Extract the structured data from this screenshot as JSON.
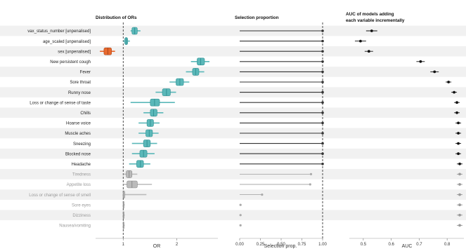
{
  "chart_data": [
    {
      "type": "boxplot",
      "title": "Distribution of ORs",
      "xlabel": "OR",
      "xscale": "log",
      "xticks": [
        "1",
        "2"
      ],
      "reference_line": 1,
      "colors": {
        "unpenalised_sex": "#e8692e",
        "selected": "#5bb8b9",
        "not_selected": "#bbbbbb"
      },
      "rows": [
        {
          "label": "vax_status_number [unpenalised]",
          "median": 1.16,
          "q1": 1.12,
          "q3": 1.2,
          "lo": 1.1,
          "hi": 1.25,
          "selected": true
        },
        {
          "label": "age_scaled [unpenalised]",
          "median": 1.04,
          "q1": 1.02,
          "q3": 1.06,
          "lo": 1.0,
          "hi": 1.09,
          "selected": true
        },
        {
          "label": "sex [unpenalised]",
          "median": 0.82,
          "q1": 0.78,
          "q3": 0.86,
          "lo": 0.74,
          "hi": 0.9,
          "selected": true,
          "highlight": true
        },
        {
          "label": "New persistent cough",
          "median": 2.72,
          "q1": 2.6,
          "q3": 2.86,
          "lo": 2.4,
          "hi": 3.05,
          "selected": true
        },
        {
          "label": "Fever",
          "median": 2.55,
          "q1": 2.45,
          "q3": 2.66,
          "lo": 2.25,
          "hi": 2.85,
          "selected": true
        },
        {
          "label": "Sore throat",
          "median": 2.08,
          "q1": 1.98,
          "q3": 2.18,
          "lo": 1.82,
          "hi": 2.35,
          "selected": true
        },
        {
          "label": "Runny nose",
          "median": 1.75,
          "q1": 1.66,
          "q3": 1.84,
          "lo": 1.52,
          "hi": 1.98,
          "selected": true
        },
        {
          "label": "Loss or change of sense of taste",
          "median": 1.5,
          "q1": 1.42,
          "q3": 1.6,
          "lo": 1.1,
          "hi": 1.95,
          "selected": true
        },
        {
          "label": "Chills",
          "median": 1.48,
          "q1": 1.42,
          "q3": 1.55,
          "lo": 1.3,
          "hi": 1.68,
          "selected": true
        },
        {
          "label": "Hoarse voice",
          "median": 1.42,
          "q1": 1.36,
          "q3": 1.48,
          "lo": 1.22,
          "hi": 1.6,
          "selected": true
        },
        {
          "label": "Muscle aches",
          "median": 1.4,
          "q1": 1.34,
          "q3": 1.46,
          "lo": 1.22,
          "hi": 1.58,
          "selected": true
        },
        {
          "label": "Sneezing",
          "median": 1.36,
          "q1": 1.3,
          "q3": 1.42,
          "lo": 1.12,
          "hi": 1.55,
          "selected": true
        },
        {
          "label": "Blocked nose",
          "median": 1.3,
          "q1": 1.24,
          "q3": 1.36,
          "lo": 1.12,
          "hi": 1.5,
          "selected": true
        },
        {
          "label": "Headache",
          "median": 1.25,
          "q1": 1.19,
          "q3": 1.3,
          "lo": 1.08,
          "hi": 1.42,
          "selected": true
        },
        {
          "label": "Tiredness",
          "median": 1.08,
          "q1": 1.04,
          "q3": 1.12,
          "lo": 1.0,
          "hi": 1.2,
          "selected": true
        },
        {
          "label": "Appetite loss",
          "median": 1.12,
          "q1": 1.05,
          "q3": 1.2,
          "lo": 1.0,
          "hi": 1.45,
          "selected": true
        },
        {
          "label": "Loss or change of sense of smell",
          "median": 1.0,
          "q1": 1.0,
          "q3": 1.02,
          "lo": 1.0,
          "hi": 1.35,
          "selected": false
        },
        {
          "label": "Sore eyes",
          "median": 1.0,
          "q1": 1.0,
          "q3": 1.0,
          "lo": 1.0,
          "hi": 1.02,
          "selected": false
        },
        {
          "label": "Dizziness",
          "median": 1.0,
          "q1": 1.0,
          "q3": 1.0,
          "lo": 1.0,
          "hi": 1.02,
          "selected": false
        },
        {
          "label": "Nausea/vomiting",
          "median": 1.0,
          "q1": 1.0,
          "q3": 1.0,
          "lo": 1.0,
          "hi": 1.02,
          "selected": false
        }
      ]
    },
    {
      "type": "lollipop",
      "title": "Selection proportion",
      "xlabel": "Selection prop.",
      "xticks": [
        "0.00",
        "0.25",
        "0.50",
        "0.75",
        "1.00"
      ],
      "xlim": [
        0,
        1
      ],
      "threshold": 1,
      "values": [
        1,
        1,
        1,
        1,
        1,
        1,
        1,
        1,
        1,
        1,
        1,
        1,
        1,
        1,
        0.86,
        0.85,
        0.27,
        0.01,
        0.01,
        0.01
      ]
    },
    {
      "type": "pointrange",
      "title": "AUC of models adding each variable incrementally",
      "title_lines": [
        "AUC of models adding",
        "each variable incrementally"
      ],
      "xlabel": "AUC",
      "xticks": [
        "0.5",
        "0.6",
        "0.7",
        "0.8"
      ],
      "xlim": [
        0.45,
        0.86
      ],
      "values": [
        {
          "auc": 0.53,
          "lo": 0.51,
          "hi": 0.55
        },
        {
          "auc": 0.49,
          "lo": 0.47,
          "hi": 0.51
        },
        {
          "auc": 0.52,
          "lo": 0.505,
          "hi": 0.535
        },
        {
          "auc": 0.705,
          "lo": 0.69,
          "hi": 0.72
        },
        {
          "auc": 0.755,
          "lo": 0.74,
          "hi": 0.77
        },
        {
          "auc": 0.805,
          "lo": 0.795,
          "hi": 0.815
        },
        {
          "auc": 0.825,
          "lo": 0.815,
          "hi": 0.835
        },
        {
          "auc": 0.835,
          "lo": 0.825,
          "hi": 0.845
        },
        {
          "auc": 0.835,
          "lo": 0.825,
          "hi": 0.845
        },
        {
          "auc": 0.84,
          "lo": 0.83,
          "hi": 0.85
        },
        {
          "auc": 0.84,
          "lo": 0.83,
          "hi": 0.85
        },
        {
          "auc": 0.84,
          "lo": 0.83,
          "hi": 0.85
        },
        {
          "auc": 0.84,
          "lo": 0.83,
          "hi": 0.85
        },
        {
          "auc": 0.845,
          "lo": 0.835,
          "hi": 0.855
        },
        {
          "auc": 0.845,
          "lo": 0.835,
          "hi": 0.855
        },
        {
          "auc": 0.845,
          "lo": 0.835,
          "hi": 0.855
        },
        {
          "auc": 0.845,
          "lo": 0.835,
          "hi": 0.855
        },
        {
          "auc": 0.845,
          "lo": 0.835,
          "hi": 0.855
        },
        {
          "auc": 0.845,
          "lo": 0.835,
          "hi": 0.855
        },
        {
          "auc": 0.845,
          "lo": 0.835,
          "hi": 0.855
        }
      ]
    }
  ]
}
